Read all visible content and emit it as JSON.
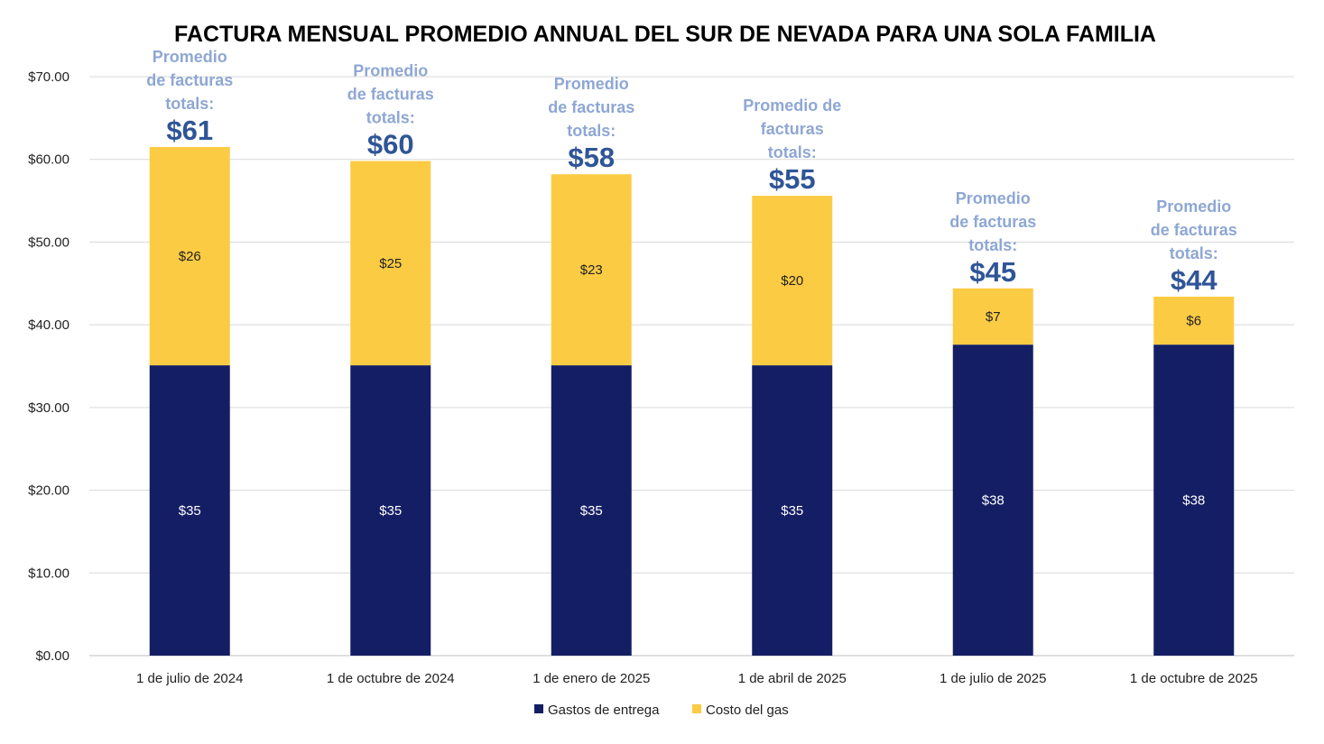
{
  "colors": {
    "delivery": "#141E64",
    "gas": "#FBCB44",
    "annotation": "#8EA7D4",
    "total": "#2F5597",
    "grid": "#D9D9D9",
    "label_on_dark": "#FFFFFF",
    "label_on_light": "#222222"
  },
  "chart_data": {
    "type": "bar",
    "stacked": true,
    "title": "FACTURA MENSUAL PROMEDIO ANNUAL DEL SUR DE NEVADA PARA UNA SOLA FAMILIA",
    "xlabel": "",
    "ylabel": "",
    "ylim": [
      0,
      70
    ],
    "yticks": [
      "$0.00",
      "$10.00",
      "$20.00",
      "$30.00",
      "$40.00",
      "$50.00",
      "$60.00",
      "$70.00"
    ],
    "grid": true,
    "legend_position": "bottom",
    "categories": [
      "1 de julio de 2024",
      "1 de octubre de 2024",
      "1 de enero de 2025",
      "1 de abril de 2025",
      "1 de julio de 2025",
      "1 de octubre de 2025"
    ],
    "series": [
      {
        "name": "Gastos de entrega",
        "values": [
          35.1,
          35.1,
          35.1,
          35.1,
          37.6,
          37.6
        ],
        "labels": [
          "$35",
          "$35",
          "$35",
          "$35",
          "$38",
          "$38"
        ]
      },
      {
        "name": "Costo del gas",
        "values": [
          26.4,
          24.7,
          23.1,
          20.5,
          6.8,
          5.8
        ],
        "labels": [
          "$26",
          "$25",
          "$23",
          "$20",
          "$7",
          "$6"
        ]
      }
    ],
    "annotations": [
      {
        "lines": [
          "Promedio",
          "de facturas",
          "totals:"
        ],
        "total": "$61"
      },
      {
        "lines": [
          "Promedio",
          "de facturas",
          "totals:"
        ],
        "total": "$60"
      },
      {
        "lines": [
          "Promedio",
          "de facturas",
          "totals:"
        ],
        "total": "$58"
      },
      {
        "lines": [
          "Promedio de",
          "facturas",
          "totals:"
        ],
        "total": "$55"
      },
      {
        "lines": [
          "Promedio",
          "de facturas",
          "totals:"
        ],
        "total": "$45"
      },
      {
        "lines": [
          "Promedio",
          "de facturas",
          "totals:"
        ],
        "total": "$44"
      }
    ]
  }
}
